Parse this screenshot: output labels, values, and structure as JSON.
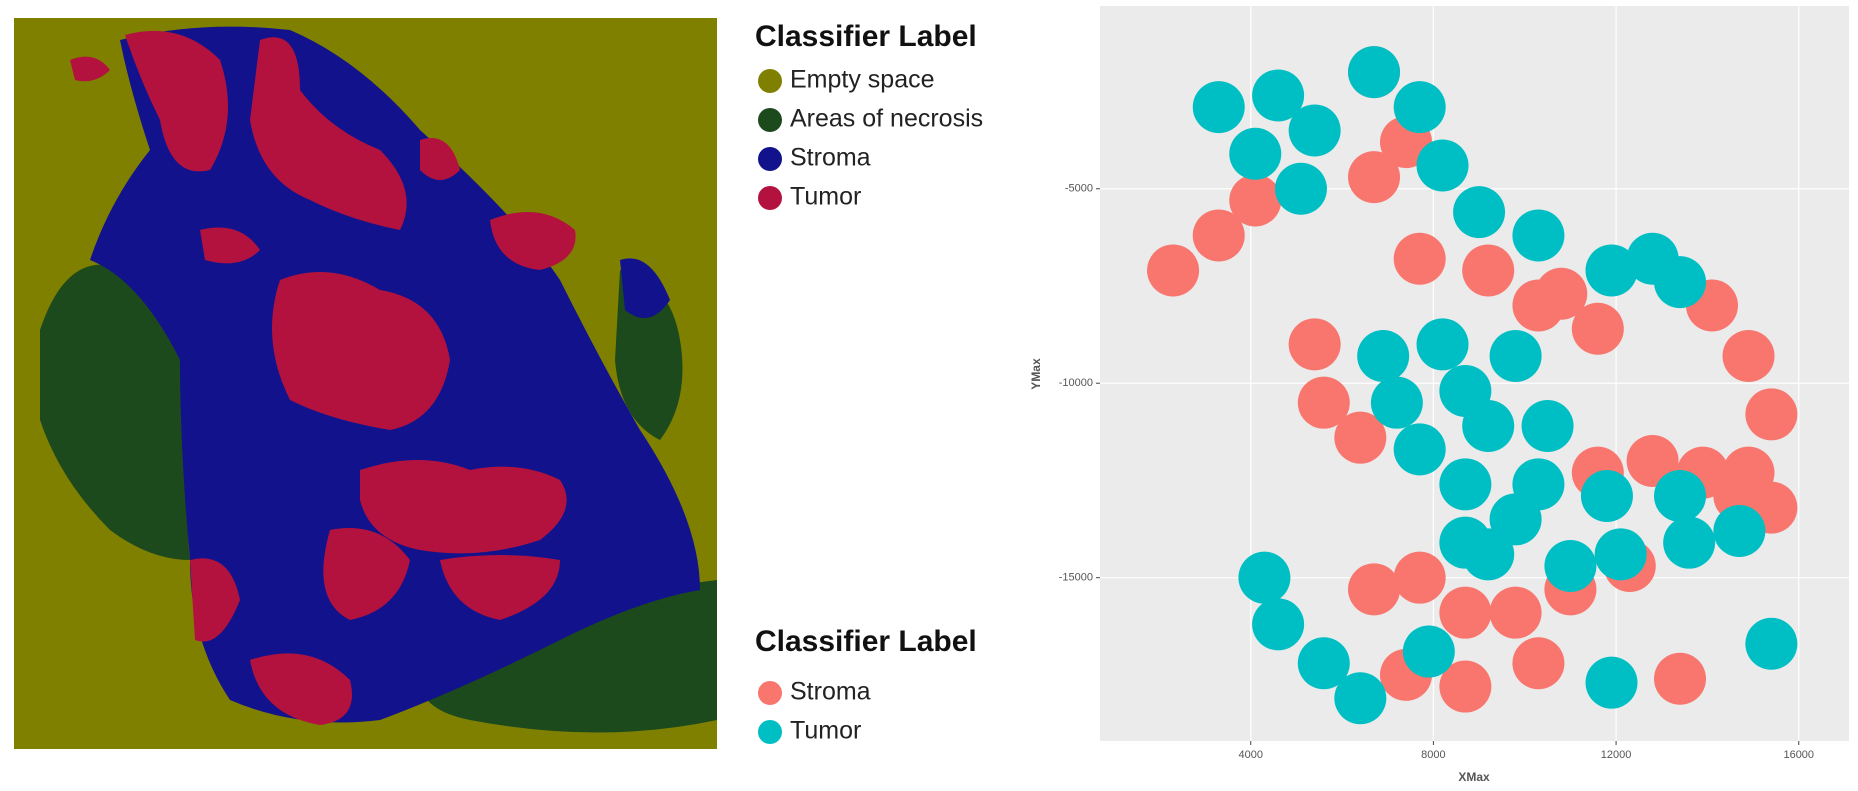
{
  "image_legend": {
    "title": "Classifier Label",
    "items": [
      {
        "label": "Empty space",
        "color": "#808000"
      },
      {
        "label": "Areas of necrosis",
        "color": "#1d4a1d"
      },
      {
        "label": "Stroma",
        "color": "#12128c"
      },
      {
        "label": "Tumor",
        "color": "#b3123e"
      }
    ]
  },
  "chart_data": {
    "type": "scatter",
    "legend_title": "Classifier Label",
    "x_label": "XMax",
    "y_label": "YMax",
    "xlim": [
      700,
      17100
    ],
    "ylim": [
      -19200,
      -300
    ],
    "xticks": [
      4000,
      8000,
      12000,
      16000
    ],
    "yticks": [
      -5000,
      -10000,
      -15000
    ],
    "grid": true,
    "series": [
      {
        "name": "Stroma",
        "color": "#f8766d",
        "x": [
          2300,
          3300,
          4100,
          6700,
          7400,
          6700,
          7700,
          9200,
          10800,
          11600,
          10300,
          5400,
          5600,
          6400,
          14100,
          14900,
          15400,
          14900,
          15400,
          11600,
          12800,
          13900,
          14700,
          6700,
          7700,
          8700,
          9800,
          11000,
          12300,
          7400,
          8700,
          10300,
          13400
        ],
        "y": [
          -7100,
          -6200,
          -5300,
          -2000,
          -3800,
          -4700,
          -6800,
          -7100,
          -7700,
          -8600,
          -8000,
          -9000,
          -10500,
          -11400,
          -8000,
          -9300,
          -10800,
          -12300,
          -13200,
          -12300,
          -12000,
          -12300,
          -12900,
          -15300,
          -15000,
          -15900,
          -15900,
          -15300,
          -14700,
          -17500,
          -17800,
          -17200,
          -17600
        ]
      },
      {
        "name": "Tumor",
        "color": "#00bfc4",
        "x": [
          3300,
          4600,
          5400,
          4100,
          5100,
          6700,
          7700,
          8200,
          11900,
          12800,
          13400,
          6900,
          8200,
          7200,
          8700,
          9800,
          7700,
          9200,
          10500,
          8700,
          10300,
          11800,
          13400,
          9800,
          8700,
          4300,
          4600,
          5600,
          6400,
          7900,
          9200,
          11000,
          12100,
          13600,
          14700,
          9000,
          10300,
          15400,
          11900
        ],
        "y": [
          -2900,
          -2600,
          -3500,
          -4100,
          -5000,
          -2000,
          -2900,
          -4400,
          -7100,
          -6800,
          -7400,
          -9300,
          -9000,
          -10500,
          -10200,
          -9300,
          -11700,
          -11100,
          -11100,
          -12600,
          -12600,
          -12900,
          -12900,
          -13500,
          -14100,
          -15000,
          -16200,
          -17200,
          -18100,
          -16900,
          -14400,
          -14700,
          -14400,
          -14100,
          -13800,
          -5600,
          -6200,
          -16700,
          -17700
        ]
      }
    ]
  }
}
